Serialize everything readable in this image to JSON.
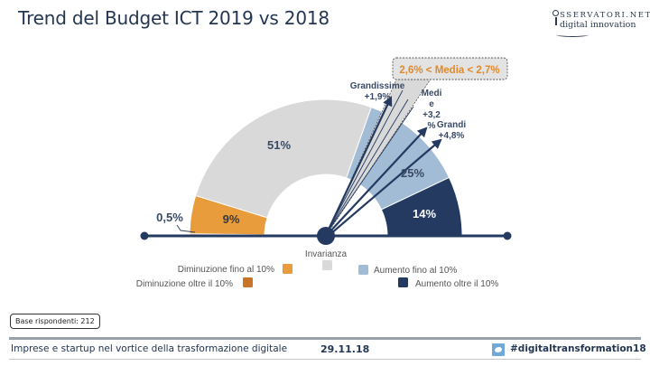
{
  "header": {
    "title": "Trend del Budget ICT 2019 vs 2018",
    "logo_line1": "SSERVATORI.NET",
    "logo_line2": "digital innovation"
  },
  "chart_data": {
    "type": "gauge",
    "title": "Trend del Budget ICT 2019 vs 2018",
    "segments": [
      {
        "name": "Diminuzione oltre il 10%",
        "value": 0.5,
        "label": "0,5%",
        "color": "#c8752a"
      },
      {
        "name": "Diminuzione fino al 10%",
        "value": 9,
        "label": "9%",
        "color": "#e89c3c"
      },
      {
        "name": "Invarianza",
        "value": 51,
        "label": "51%",
        "color": "#d9d9d9"
      },
      {
        "name": "Aumento fino al 10%",
        "value": 25,
        "label": "25%",
        "color": "#a2bcd6"
      },
      {
        "name": "Aumento oltre il 10%",
        "value": 14,
        "label": "14%",
        "color": "#243a61"
      }
    ],
    "pointers": [
      {
        "name": "Grandissime",
        "value": 1.9,
        "label": "Grandissime",
        "value_label": "+1,9%"
      },
      {
        "name": "Medie",
        "value": 3.2,
        "label": "Medi\ne",
        "value_label": "+3,2\n%"
      },
      {
        "name": "Grandi",
        "value": 4.8,
        "label": "Grandi",
        "value_label": "+4,8%"
      }
    ],
    "average_range": {
      "min": 2.6,
      "max": 2.7,
      "label": "2,6% < Media < 2,7%",
      "color": "#e08a2c"
    },
    "center_label": "Invarianza",
    "legend": [
      {
        "label": "Diminuzione fino al 10%",
        "color": "#e89c3c"
      },
      {
        "label": "Invarianza",
        "color": "#d9d9d9"
      },
      {
        "label": "Aumento fino al 10%",
        "color": "#a2bcd6"
      },
      {
        "label": "Diminuzione oltre il 10%",
        "color": "#c8752a"
      },
      {
        "label": "Aumento oltre il 10%",
        "color": "#243a61"
      }
    ]
  },
  "base": "Base rispondenti: 212",
  "footer": {
    "event": "Imprese e startup nel vortice della trasformazione digitale",
    "date": "29.11.18",
    "hashtag": "#digitaltransformation18"
  },
  "colors": {
    "navy": "#243a61",
    "title": "#243651"
  }
}
